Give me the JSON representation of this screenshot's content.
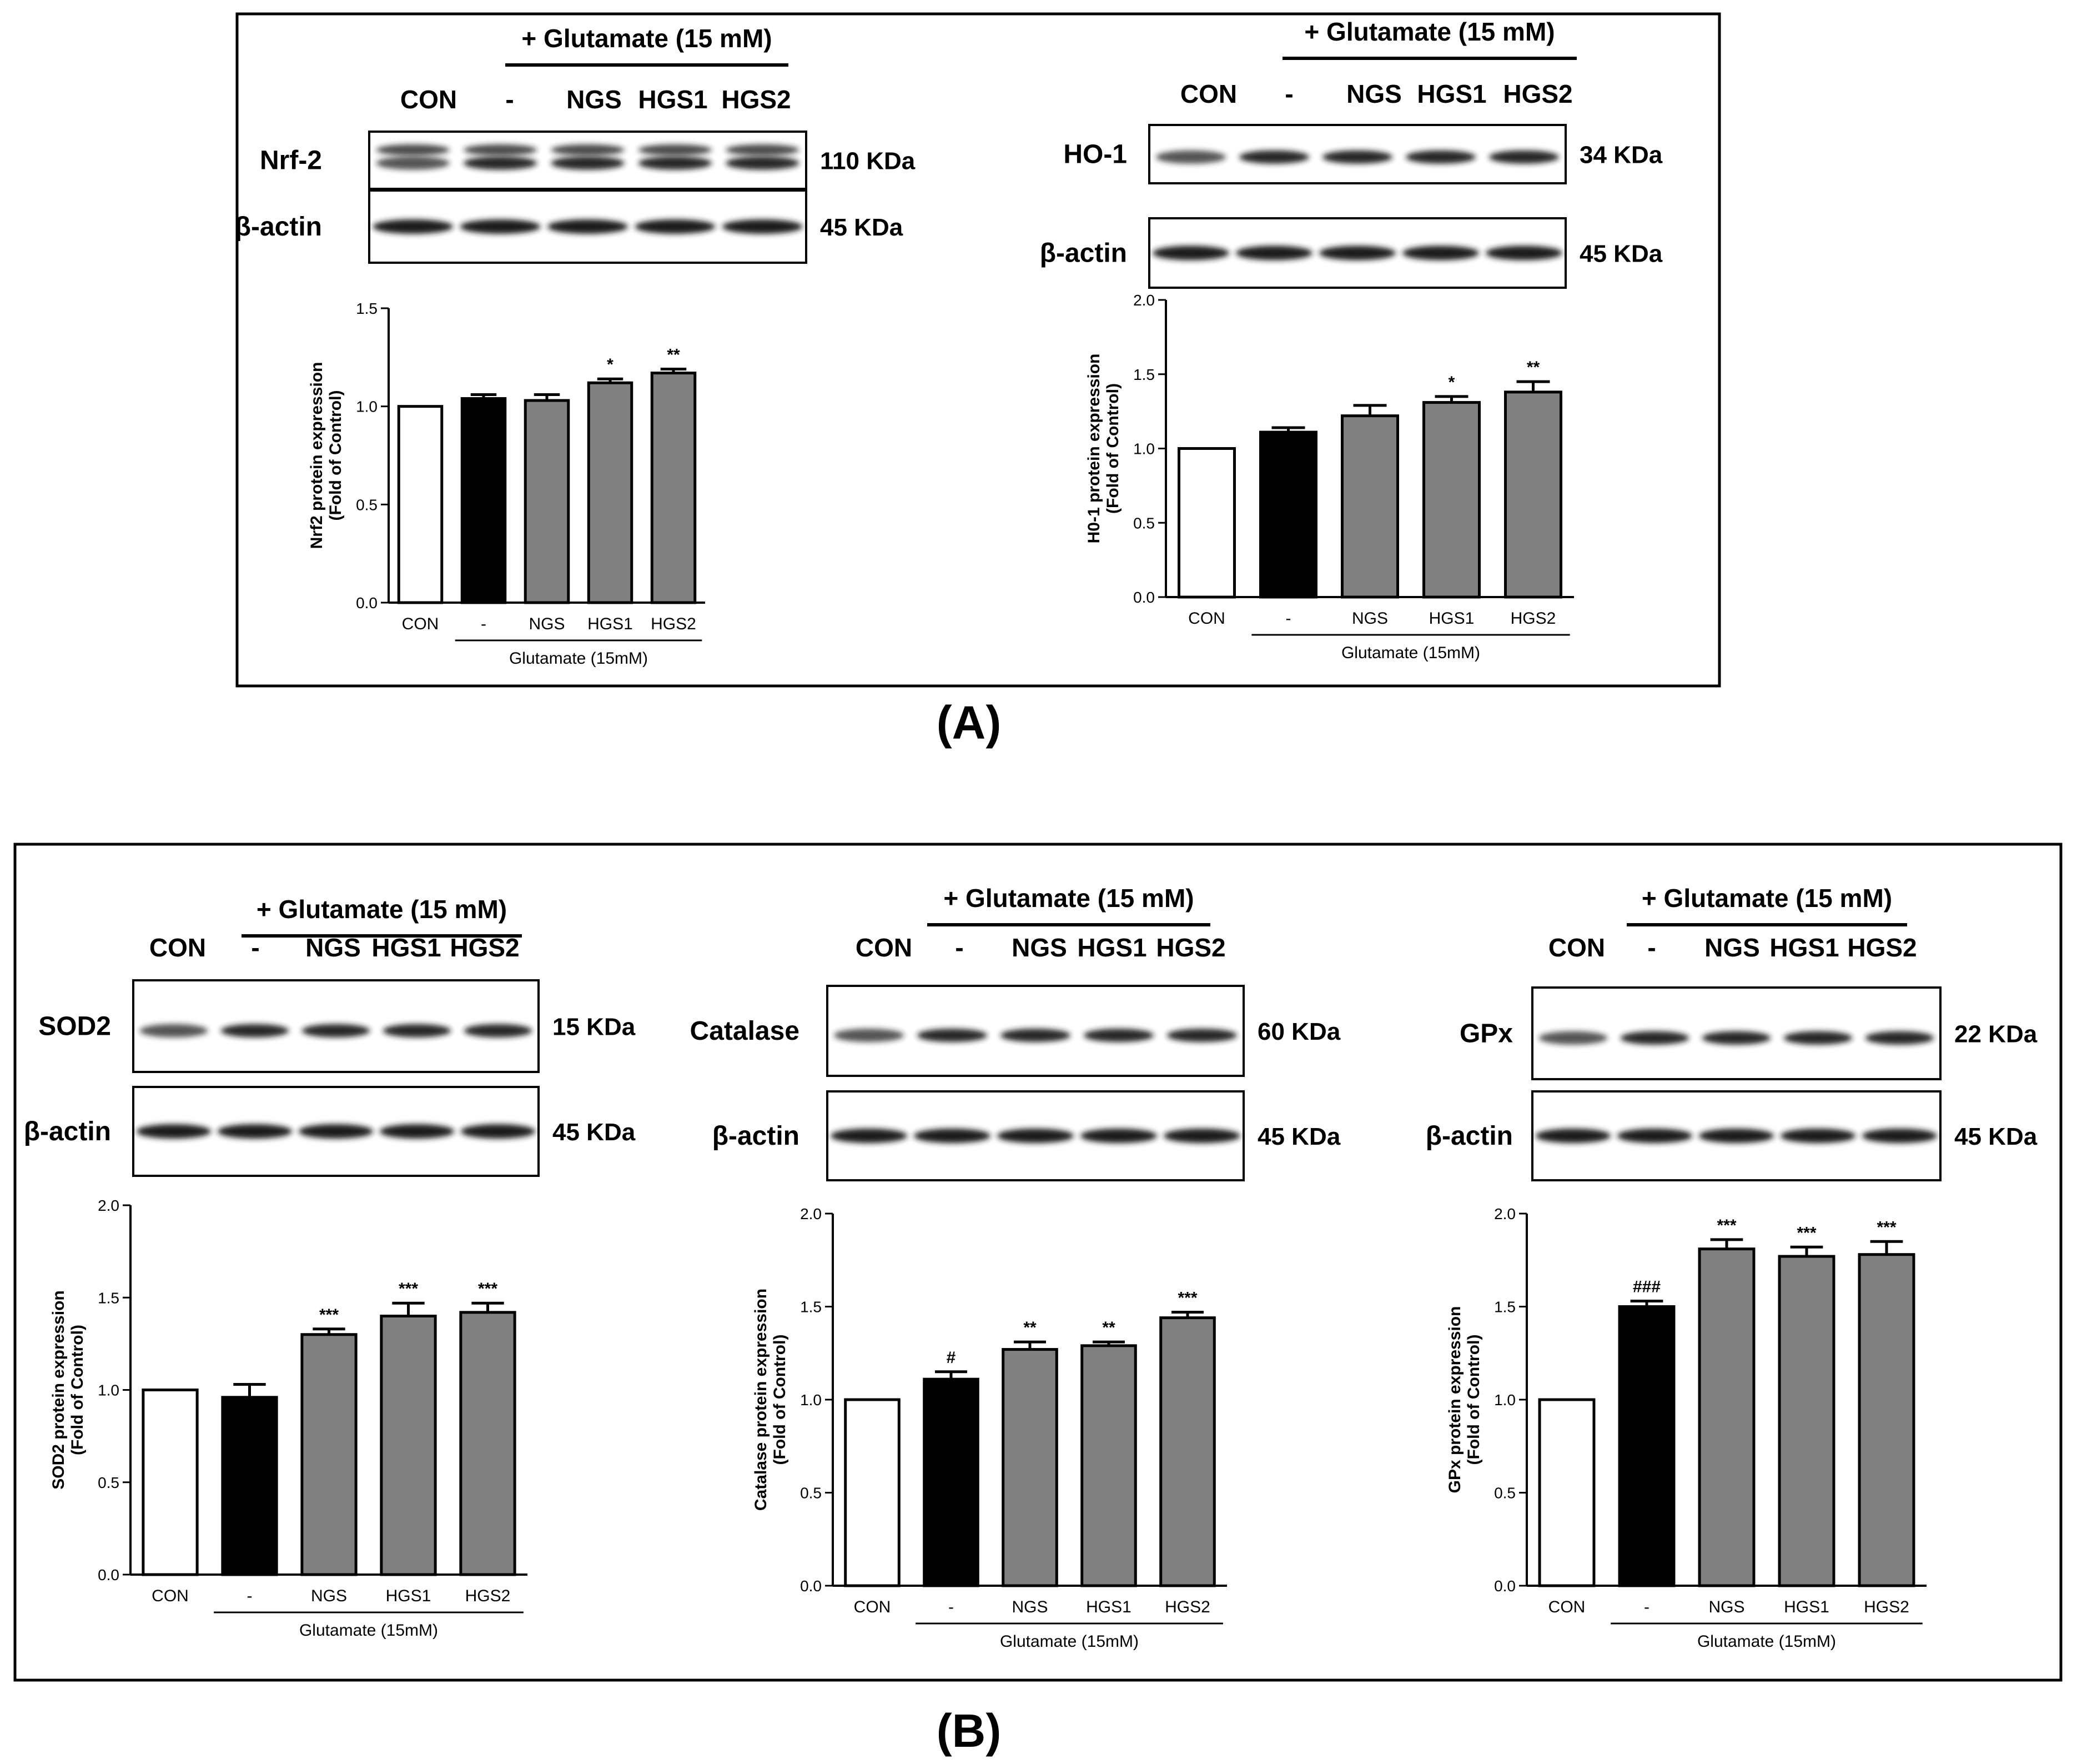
{
  "figure": {
    "panel_labels": [
      "(A)",
      "(B)"
    ],
    "lane_labels": [
      "CON",
      "-",
      "NGS",
      "HGS1",
      "HGS2"
    ],
    "treatment_header": "+ Glutamate (15 mM)",
    "xaxis_group_label": "Glutamate (15mM)",
    "bar_colors": [
      "#ffffff",
      "#000000",
      "#808080",
      "#808080",
      "#808080"
    ]
  },
  "blots": [
    {
      "id": "nrf2",
      "protein": "Nrf-2",
      "protein_kda": "110 KDa",
      "loading": "β-actin",
      "loading_kda": "45 KDa"
    },
    {
      "id": "ho1",
      "protein": "HO-1",
      "protein_kda": "34 KDa",
      "loading": "β-actin",
      "loading_kda": "45 KDa"
    },
    {
      "id": "sod2",
      "protein": "SOD2",
      "protein_kda": "15 KDa",
      "loading": "β-actin",
      "loading_kda": "45 KDa"
    },
    {
      "id": "catalase",
      "protein": "Catalase",
      "protein_kda": "60 KDa",
      "loading": "β-actin",
      "loading_kda": "45 KDa"
    },
    {
      "id": "gpx",
      "protein": "GPx",
      "protein_kda": "22 KDa",
      "loading": "β-actin",
      "loading_kda": "45 KDa"
    }
  ],
  "chart_data": [
    {
      "id": "nrf2",
      "type": "bar",
      "categories": [
        "CON",
        "-",
        "NGS",
        "HGS1",
        "HGS2"
      ],
      "values": [
        1.0,
        1.04,
        1.03,
        1.12,
        1.17
      ],
      "errors": [
        0.0,
        0.02,
        0.03,
        0.02,
        0.02
      ],
      "annotations": [
        "",
        "",
        "",
        "*",
        "**"
      ],
      "ylabel_line1": "Nrf2 protein expression",
      "ylabel_line2": "(Fold of Control)",
      "xlabel": "Glutamate (15mM)",
      "ylim": [
        0,
        1.5
      ],
      "yticks": [
        0.0,
        0.5,
        1.0,
        1.5
      ],
      "ytick_labels": [
        "0.0",
        "0.5",
        "1.0",
        "1.5"
      ]
    },
    {
      "id": "ho1",
      "type": "bar",
      "categories": [
        "CON",
        "-",
        "NGS",
        "HGS1",
        "HGS2"
      ],
      "values": [
        1.0,
        1.11,
        1.22,
        1.31,
        1.38
      ],
      "errors": [
        0.0,
        0.03,
        0.07,
        0.04,
        0.07
      ],
      "annotations": [
        "",
        "",
        "",
        "*",
        "**"
      ],
      "ylabel_line1": "H0-1 protein expression",
      "ylabel_line2": "(Fold of Control)",
      "xlabel": "Glutamate (15mM)",
      "ylim": [
        0,
        2.0
      ],
      "yticks": [
        0.0,
        0.5,
        1.0,
        1.5,
        2.0
      ],
      "ytick_labels": [
        "0.0",
        "0.5",
        "1.0",
        "1.5",
        "2.0"
      ]
    },
    {
      "id": "sod2",
      "type": "bar",
      "categories": [
        "CON",
        "-",
        "NGS",
        "HGS1",
        "HGS2"
      ],
      "values": [
        1.0,
        0.96,
        1.3,
        1.4,
        1.42
      ],
      "errors": [
        0.0,
        0.07,
        0.03,
        0.07,
        0.05
      ],
      "annotations": [
        "",
        "",
        "***",
        "***",
        "***"
      ],
      "ylabel_line1": "SOD2 protein expression",
      "ylabel_line2": "(Fold of Control)",
      "xlabel": "Glutamate (15mM)",
      "ylim": [
        0,
        2.0
      ],
      "yticks": [
        0.0,
        0.5,
        1.0,
        1.5,
        2.0
      ],
      "ytick_labels": [
        "0.0",
        "0.5",
        "1.0",
        "1.5",
        "2.0"
      ]
    },
    {
      "id": "catalase",
      "type": "bar",
      "categories": [
        "CON",
        "-",
        "NGS",
        "HGS1",
        "HGS2"
      ],
      "values": [
        1.0,
        1.11,
        1.27,
        1.29,
        1.44
      ],
      "errors": [
        0.0,
        0.04,
        0.04,
        0.02,
        0.03
      ],
      "annotations": [
        "",
        "#",
        "**",
        "**",
        "***"
      ],
      "ylabel_line1": "Catalase protein expression",
      "ylabel_line2": "(Fold of Control)",
      "xlabel": "Glutamate (15mM)",
      "ylim": [
        0,
        2.0
      ],
      "yticks": [
        0.0,
        0.5,
        1.0,
        1.5,
        2.0
      ],
      "ytick_labels": [
        "0.0",
        "0.5",
        "1.0",
        "1.5",
        "2.0"
      ]
    },
    {
      "id": "gpx",
      "type": "bar",
      "categories": [
        "CON",
        "-",
        "NGS",
        "HGS1",
        "HGS2"
      ],
      "values": [
        1.0,
        1.5,
        1.81,
        1.77,
        1.78
      ],
      "errors": [
        0.0,
        0.03,
        0.05,
        0.05,
        0.07
      ],
      "annotations": [
        "",
        "###",
        "***",
        "***",
        "***"
      ],
      "ylabel_line1": "GPx protein expression",
      "ylabel_line2": "(Fold of Control)",
      "xlabel": "Glutamate (15mM)",
      "ylim": [
        0,
        2.0
      ],
      "yticks": [
        0.0,
        0.5,
        1.0,
        1.5,
        2.0
      ],
      "ytick_labels": [
        "0.0",
        "0.5",
        "1.0",
        "1.5",
        "2.0"
      ]
    }
  ]
}
